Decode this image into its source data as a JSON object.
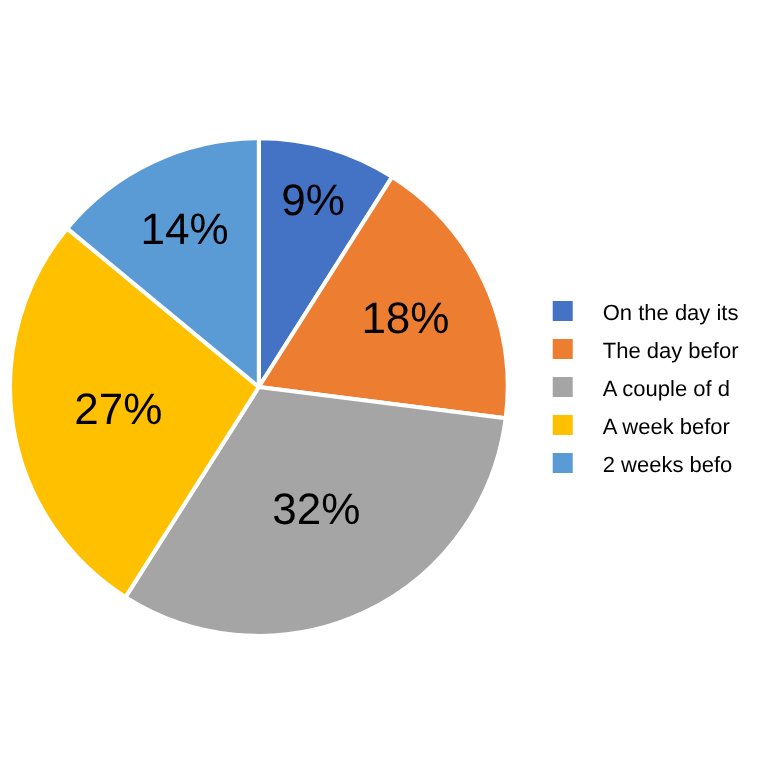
{
  "chart_data": {
    "type": "pie",
    "categories": [
      "On the day its",
      "The day befor",
      "A couple of d",
      "A week befor",
      "2 weeks befo"
    ],
    "values": [
      9,
      18,
      32,
      27,
      14
    ],
    "colors": [
      "#4472c4",
      "#ed7d31",
      "#a5a5a5",
      "#ffc000",
      "#5b9bd5"
    ],
    "value_labels": [
      "9%",
      "18%",
      "32%",
      "27%",
      "14%"
    ],
    "legend": "right"
  }
}
